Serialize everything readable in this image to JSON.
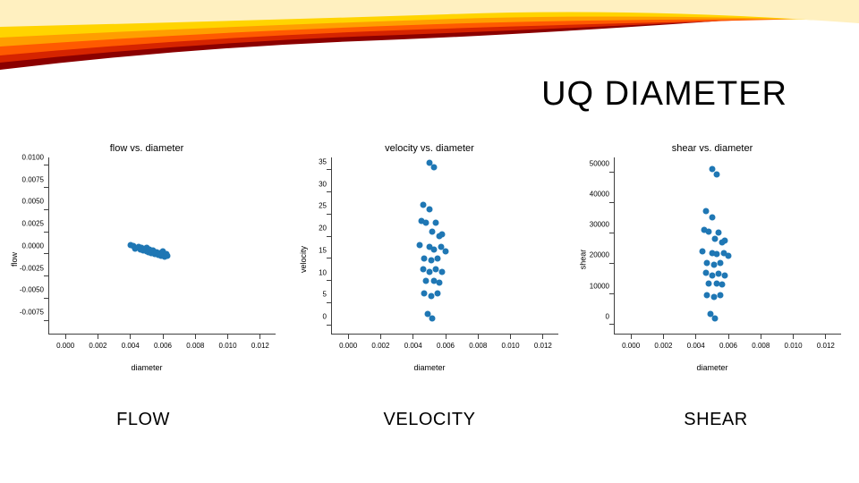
{
  "slide": {
    "title": "UQ DIAMETER",
    "banner": {
      "colors": [
        "#8b0000",
        "#d62400",
        "#ff5a00",
        "#ff9e00",
        "#ffd400",
        "#fff0c0"
      ]
    }
  },
  "charts": [
    {
      "title": "flow vs. diameter",
      "caption": "FLOW",
      "type": "scatter",
      "xlabel": "diameter",
      "ylabel": "flow",
      "xlim": [
        -0.001,
        0.013
      ],
      "ylim": [
        -0.009,
        0.011
      ],
      "xticks": [
        0.0,
        0.002,
        0.004,
        0.006,
        0.008,
        0.01,
        0.012
      ],
      "yticks": [
        -0.0075,
        -0.005,
        -0.0025,
        0.0,
        0.0025,
        0.005,
        0.0075,
        0.01
      ],
      "xtick_labels": [
        "0.000",
        "0.002",
        "0.004",
        "0.006",
        "0.008",
        "0.010",
        "0.012"
      ],
      "ytick_labels": [
        "-0.0075",
        "-0.0050",
        "-0.0025",
        "0.0000",
        "0.0025",
        "0.0050",
        "0.0075",
        "0.0100"
      ],
      "marker_color": "#1f77b4",
      "marker_size": 7,
      "background_color": "#ffffff",
      "points": [
        [
          0.004,
          0.001
        ],
        [
          0.0042,
          0.0009
        ],
        [
          0.0043,
          0.0006
        ],
        [
          0.0045,
          0.0008
        ],
        [
          0.0046,
          0.0005
        ],
        [
          0.0047,
          0.0007
        ],
        [
          0.0048,
          0.0004
        ],
        [
          0.0049,
          0.0006
        ],
        [
          0.005,
          0.0003
        ],
        [
          0.005,
          0.0007
        ],
        [
          0.0051,
          0.0002
        ],
        [
          0.0052,
          0.0005
        ],
        [
          0.0053,
          0.0001
        ],
        [
          0.0054,
          0.0004
        ],
        [
          0.0055,
          0.0
        ],
        [
          0.0056,
          0.0002
        ],
        [
          0.0057,
          -0.0001
        ],
        [
          0.0058,
          0.0001
        ],
        [
          0.0059,
          -0.0002
        ],
        [
          0.006,
          0.0003
        ],
        [
          0.0061,
          -0.0003
        ],
        [
          0.0062,
          0.0
        ],
        [
          0.0063,
          -0.0002
        ]
      ]
    },
    {
      "title": "velocity vs. diameter",
      "caption": "VELOCITY",
      "type": "scatter",
      "xlabel": "diameter",
      "ylabel": "velocity",
      "xlim": [
        -0.001,
        0.013
      ],
      "ylim": [
        -2,
        38
      ],
      "xticks": [
        0.0,
        0.002,
        0.004,
        0.006,
        0.008,
        0.01,
        0.012
      ],
      "yticks": [
        0,
        5,
        10,
        15,
        20,
        25,
        30,
        35
      ],
      "xtick_labels": [
        "0.000",
        "0.002",
        "0.004",
        "0.006",
        "0.008",
        "0.010",
        "0.012"
      ],
      "ytick_labels": [
        "0",
        "5",
        "10",
        "15",
        "20",
        "25",
        "30",
        "35"
      ],
      "marker_color": "#1f77b4",
      "marker_size": 7,
      "background_color": "#ffffff",
      "points": [
        [
          0.005,
          36.5
        ],
        [
          0.0053,
          35.5
        ],
        [
          0.0046,
          27.0
        ],
        [
          0.005,
          26.0
        ],
        [
          0.0045,
          23.5
        ],
        [
          0.0048,
          23.0
        ],
        [
          0.0054,
          23.0
        ],
        [
          0.0052,
          21.0
        ],
        [
          0.0056,
          20.0
        ],
        [
          0.0058,
          20.5
        ],
        [
          0.0044,
          18.0
        ],
        [
          0.005,
          17.5
        ],
        [
          0.0053,
          17.0
        ],
        [
          0.0057,
          17.5
        ],
        [
          0.006,
          16.5
        ],
        [
          0.0047,
          15.0
        ],
        [
          0.0051,
          14.5
        ],
        [
          0.0055,
          15.0
        ],
        [
          0.0046,
          12.5
        ],
        [
          0.005,
          12.0
        ],
        [
          0.0054,
          12.5
        ],
        [
          0.0058,
          12.0
        ],
        [
          0.0048,
          10.0
        ],
        [
          0.0053,
          10.0
        ],
        [
          0.0056,
          9.5
        ],
        [
          0.0047,
          7.0
        ],
        [
          0.0051,
          6.5
        ],
        [
          0.0055,
          7.0
        ],
        [
          0.0049,
          2.5
        ],
        [
          0.0052,
          1.5
        ]
      ]
    },
    {
      "title": "shear vs. diameter",
      "caption": "SHEAR",
      "type": "scatter",
      "xlabel": "diameter",
      "ylabel": "shear",
      "xlim": [
        -0.001,
        0.013
      ],
      "ylim": [
        -3000,
        55000
      ],
      "xticks": [
        0.0,
        0.002,
        0.004,
        0.006,
        0.008,
        0.01,
        0.012
      ],
      "yticks": [
        0,
        10000,
        20000,
        30000,
        40000,
        50000
      ],
      "xtick_labels": [
        "0.000",
        "0.002",
        "0.004",
        "0.006",
        "0.008",
        "0.010",
        "0.012"
      ],
      "ytick_labels": [
        "0",
        "10000",
        "20000",
        "30000",
        "40000",
        "50000"
      ],
      "marker_color": "#1f77b4",
      "marker_size": 7,
      "background_color": "#ffffff",
      "points": [
        [
          0.005,
          51000
        ],
        [
          0.0053,
          49000
        ],
        [
          0.0046,
          37000
        ],
        [
          0.005,
          35000
        ],
        [
          0.0045,
          31000
        ],
        [
          0.0048,
          30500
        ],
        [
          0.0054,
          30000
        ],
        [
          0.0052,
          28000
        ],
        [
          0.0056,
          27000
        ],
        [
          0.0058,
          27500
        ],
        [
          0.0044,
          24000
        ],
        [
          0.005,
          23500
        ],
        [
          0.0053,
          23000
        ],
        [
          0.0057,
          23500
        ],
        [
          0.006,
          22500
        ],
        [
          0.0047,
          20000
        ],
        [
          0.0051,
          19500
        ],
        [
          0.0055,
          20000
        ],
        [
          0.0046,
          17000
        ],
        [
          0.005,
          16000
        ],
        [
          0.0054,
          16500
        ],
        [
          0.0058,
          16000
        ],
        [
          0.0048,
          13500
        ],
        [
          0.0053,
          13500
        ],
        [
          0.0056,
          13000
        ],
        [
          0.0047,
          9500
        ],
        [
          0.0051,
          9000
        ],
        [
          0.0055,
          9500
        ],
        [
          0.0049,
          3500
        ],
        [
          0.0052,
          2000
        ]
      ]
    }
  ]
}
